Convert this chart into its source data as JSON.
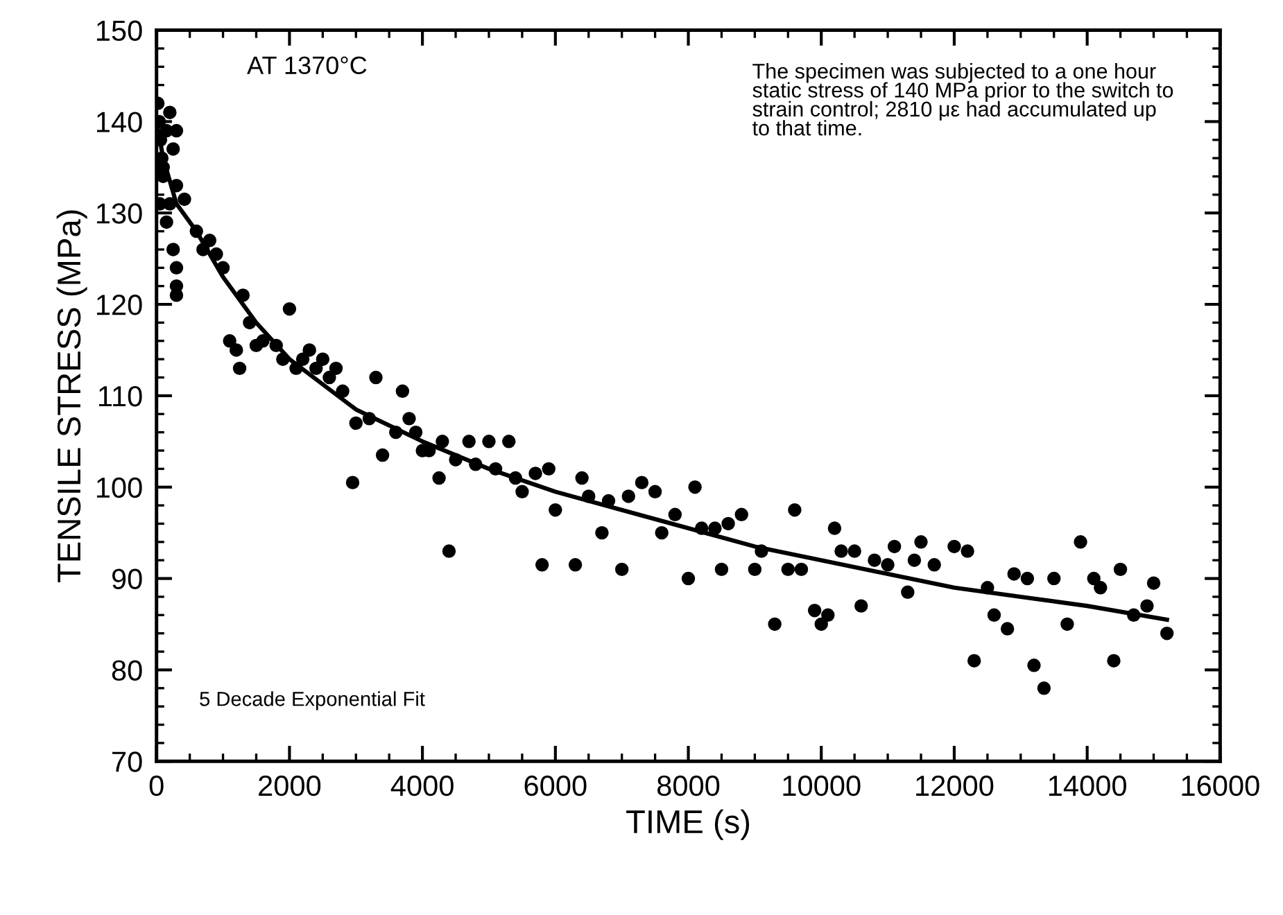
{
  "chart_data": {
    "type": "scatter",
    "title": "AT 1370°C",
    "xlabel": "TIME (s)",
    "ylabel": "TENSILE STRESS (MPa)",
    "xlim": [
      0,
      16000
    ],
    "ylim": [
      70,
      150
    ],
    "xticks": [
      0,
      2000,
      4000,
      6000,
      8000,
      10000,
      12000,
      14000,
      16000
    ],
    "yticks": [
      70,
      80,
      90,
      100,
      110,
      120,
      130,
      140,
      150
    ],
    "grid": false,
    "legend": false,
    "marker": "circle",
    "annotations": [
      "The specimen was subjected to a one hour\nstatic stress of 140 MPa prior to the switch to\nstrain control; 2810 με had accumulated up\nto that time.",
      "5 Decade Exponential Fit"
    ],
    "series": [
      {
        "color": "#000000",
        "x": [
          20,
          40,
          60,
          80,
          100,
          150,
          200,
          250,
          300,
          50,
          150,
          250,
          300,
          300,
          300,
          100,
          200,
          300,
          420,
          600,
          700,
          800,
          900,
          1000,
          1100,
          1200,
          1250,
          1300,
          1400,
          1500,
          1600,
          1800,
          1900,
          2000,
          2100,
          2200,
          2300,
          2400,
          2500,
          2600,
          2700,
          2800,
          2950,
          3000,
          3200,
          3300,
          3400,
          3600,
          3700,
          3800,
          3900,
          4000,
          4100,
          4250,
          4300,
          4400,
          4500,
          4700,
          4800,
          5000,
          5100,
          5300,
          5400,
          5500,
          5700,
          5800,
          5900,
          6000,
          6300,
          6400,
          6500,
          6700,
          6800,
          7000,
          7100,
          7300,
          7500,
          7600,
          7800,
          8000,
          8100,
          8200,
          8400,
          8500,
          8600,
          8800,
          9000,
          9100,
          9300,
          9500,
          9600,
          9700,
          9900,
          10000,
          10100,
          10200,
          10300,
          10500,
          10600,
          10800,
          11000,
          11100,
          11300,
          11400,
          11500,
          11700,
          12000,
          12200,
          12300,
          12500,
          12600,
          12800,
          12900,
          13100,
          13200,
          13350,
          13500,
          13700,
          13900,
          14100,
          14200,
          14400,
          14500,
          14700,
          14900,
          15000,
          15200
        ],
        "values": [
          142,
          140,
          138,
          136,
          134,
          139,
          141,
          137,
          133,
          131,
          129,
          126,
          124,
          122,
          121,
          135,
          131,
          139,
          131.5,
          128,
          126,
          127,
          125.5,
          124,
          116,
          115,
          113,
          121,
          118,
          115.5,
          116,
          115.5,
          114,
          119.5,
          113,
          114,
          115,
          113,
          114,
          112,
          113,
          110.5,
          100.5,
          107,
          107.5,
          112,
          103.5,
          106,
          110.5,
          107.5,
          106,
          104,
          104,
          101,
          105,
          93,
          103,
          105,
          102.5,
          105,
          102,
          105,
          101,
          99.5,
          101.5,
          91.5,
          102,
          97.5,
          91.5,
          101,
          99,
          95,
          98.5,
          91,
          99,
          100.5,
          99.5,
          95,
          97,
          90,
          100,
          95.5,
          95.5,
          91,
          96,
          97,
          91,
          93,
          85,
          91,
          97.5,
          91,
          86.5,
          85,
          86,
          95.5,
          93,
          93,
          87,
          92,
          91.5,
          93.5,
          88.5,
          92,
          94,
          91.5,
          93.5,
          93,
          81,
          89,
          86,
          84.5,
          90.5,
          90,
          80.5,
          78,
          90,
          85,
          94,
          90,
          89,
          81,
          91,
          86,
          87,
          89.5,
          84
        ]
      },
      {
        "type": "line",
        "color": "#000000",
        "marker": "none",
        "line_style": "solid",
        "x": [
          0,
          100,
          300,
          600,
          1000,
          1500,
          2000,
          3000,
          4000,
          5000,
          6000,
          7000,
          8000,
          9000,
          10000,
          11000,
          12000,
          13000,
          14000,
          15200
        ],
        "values": [
          140,
          136,
          131,
          128,
          123,
          118,
          114,
          108.5,
          105,
          102,
          99.5,
          97.5,
          95.5,
          93.5,
          92,
          90.5,
          89,
          88,
          87,
          85.5
        ]
      }
    ]
  }
}
